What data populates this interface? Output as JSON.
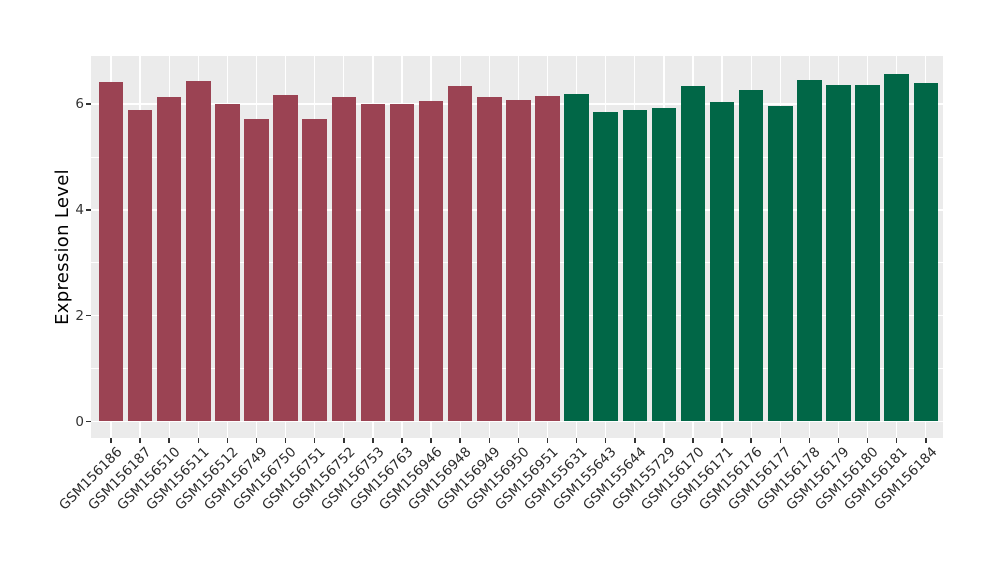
{
  "figure": {
    "title": "",
    "ylabel": "Expression Level"
  },
  "chart_data": {
    "type": "bar",
    "title": "",
    "xlabel": "",
    "ylabel": "Expression Level",
    "ylim": [
      0,
      6.91
    ],
    "yticks": [
      0,
      2,
      4,
      6
    ],
    "yticks_minor": [
      1,
      3,
      5
    ],
    "grid": "on",
    "legend": "none",
    "panel_background": "#EBEBEB",
    "gridline_color": "#FFFFFF",
    "tick_color": "#333333",
    "palette": [
      "#9B4353",
      "#016747"
    ],
    "group_names": [
      "group-1-red",
      "group-2-green"
    ],
    "categories": [
      "GSM156186",
      "GSM156187",
      "GSM156510",
      "GSM156511",
      "GSM156512",
      "GSM156749",
      "GSM156750",
      "GSM156751",
      "GSM156752",
      "GSM156753",
      "GSM156763",
      "GSM156946",
      "GSM156948",
      "GSM156949",
      "GSM156950",
      "GSM156951",
      "GSM155631",
      "GSM155643",
      "GSM155644",
      "GSM155729",
      "GSM156170",
      "GSM156171",
      "GSM156176",
      "GSM156177",
      "GSM156178",
      "GSM156179",
      "GSM156180",
      "GSM156181",
      "GSM156184"
    ],
    "values": [
      6.42,
      5.89,
      6.13,
      6.43,
      6.0,
      5.71,
      6.18,
      5.72,
      6.14,
      6.0,
      6.0,
      6.06,
      6.34,
      6.13,
      6.07,
      6.15,
      6.2,
      5.86,
      5.89,
      5.93,
      6.35,
      6.04,
      6.26,
      5.96,
      6.46,
      6.36,
      6.36,
      6.57,
      6.4
    ],
    "bar_color_index": [
      0,
      0,
      0,
      0,
      0,
      0,
      0,
      0,
      0,
      0,
      0,
      0,
      0,
      0,
      0,
      0,
      1,
      1,
      1,
      1,
      1,
      1,
      1,
      1,
      1,
      1,
      1,
      1,
      1
    ]
  }
}
